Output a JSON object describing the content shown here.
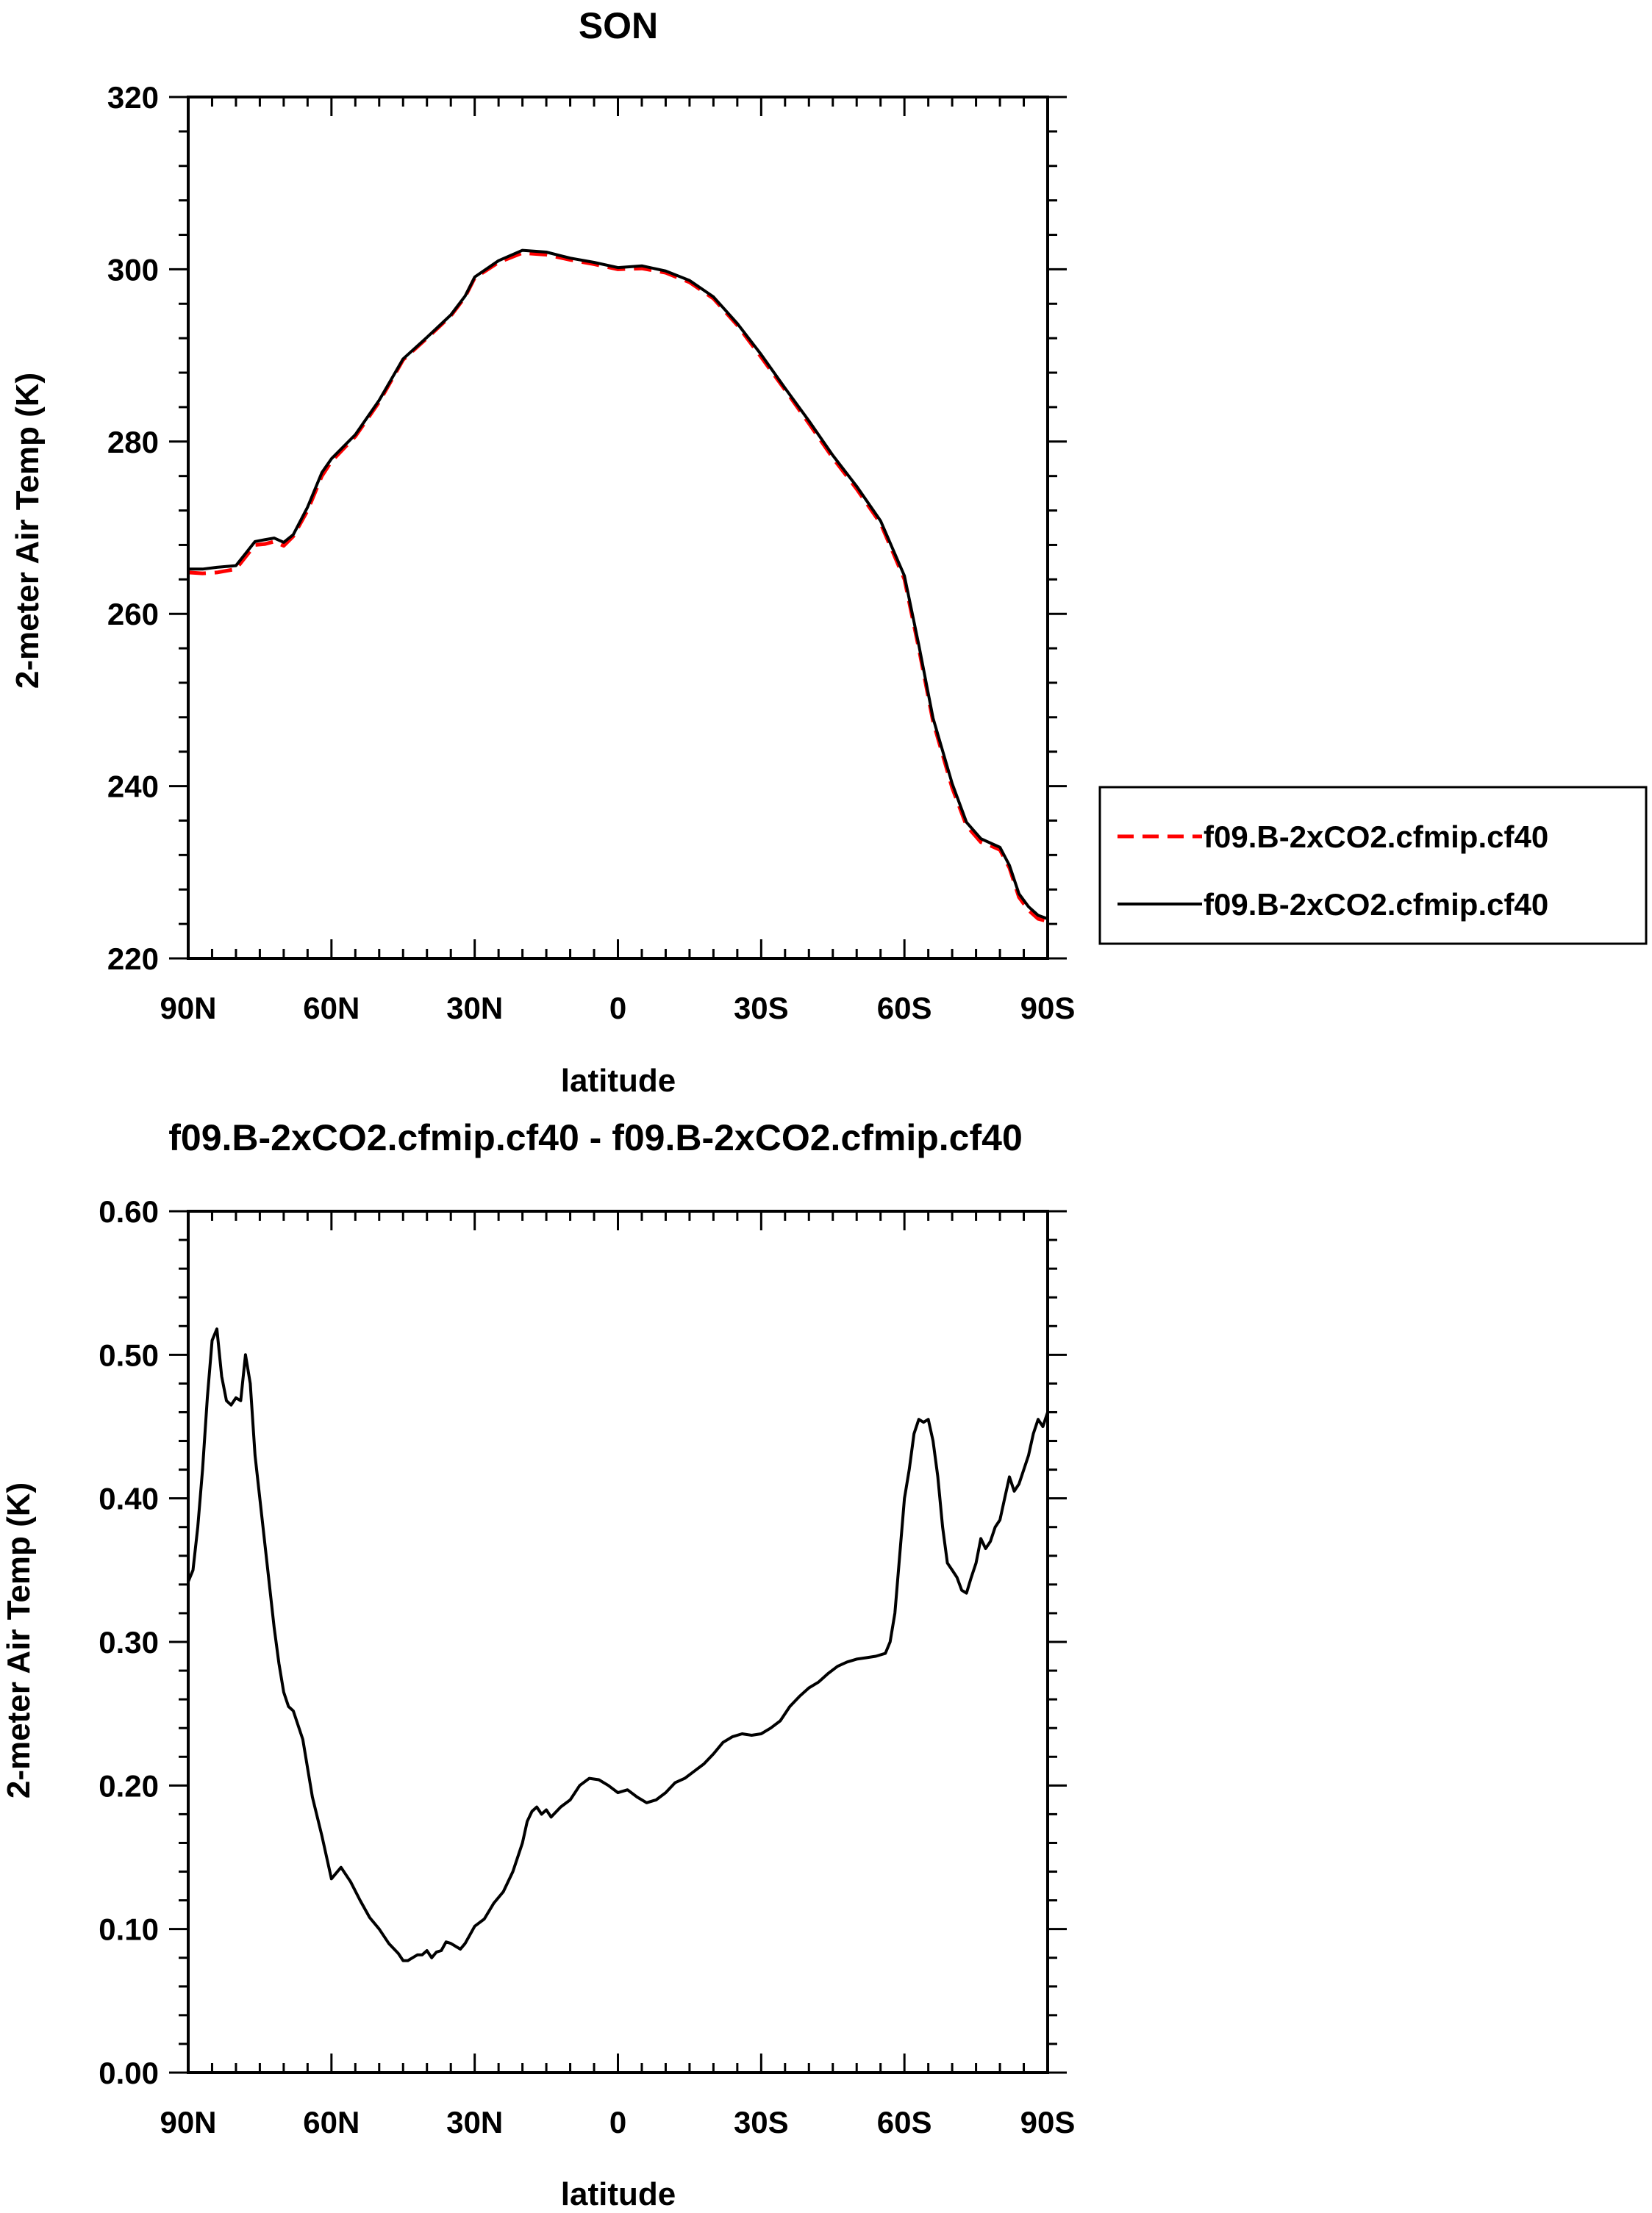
{
  "chart_data": [
    {
      "type": "line",
      "title": "SON",
      "xlabel": "latitude",
      "ylabel": "2-meter Air Temp (K)",
      "xlim": [
        90,
        -90
      ],
      "ylim": [
        220,
        320
      ],
      "x_ticks": [
        90,
        60,
        30,
        0,
        -30,
        -60,
        -90
      ],
      "x_tick_labels": [
        "90N",
        "60N",
        "30N",
        "0",
        "30S",
        "60S",
        "90S"
      ],
      "y_ticks": [
        220,
        240,
        260,
        280,
        300,
        320
      ],
      "y_tick_labels": [
        "220",
        "240",
        "260",
        "280",
        "300",
        "320"
      ],
      "grid": false,
      "legend": {
        "placement": "right-outside",
        "entries": [
          {
            "label": "f09.B-2xCO2.cfmip.cf40",
            "color": "#ff0000",
            "style": "dashed"
          },
          {
            "label": "f09.B-2xCO2.cfmip.cf40",
            "color": "#000000",
            "style": "solid"
          }
        ]
      },
      "series": [
        {
          "name": "f09.B-2xCO2.cfmip.cf40",
          "color": "#ff0000",
          "style": "dashed",
          "x": [
            90,
            87,
            84,
            80,
            78,
            76,
            74,
            72,
            70,
            68,
            65,
            62,
            60,
            55,
            50,
            45,
            40,
            35,
            32,
            30,
            25,
            20,
            15,
            10,
            5,
            0,
            -5,
            -10,
            -15,
            -20,
            -25,
            -30,
            -35,
            -40,
            -45,
            -50,
            -55,
            -60,
            -63,
            -66,
            -70,
            -73,
            -76,
            -78,
            -80,
            -82,
            -84,
            -86,
            -88,
            -90
          ],
          "y": [
            264.8,
            264.7,
            264.8,
            265.2,
            266.6,
            268.0,
            268.1,
            268.4,
            267.9,
            269.0,
            272.0,
            276.0,
            277.7,
            280.6,
            284.6,
            289.5,
            292.0,
            294.6,
            296.8,
            299.0,
            300.8,
            301.9,
            301.7,
            301.1,
            300.6,
            300.0,
            300.1,
            299.6,
            298.5,
            296.6,
            293.5,
            289.8,
            286.0,
            282.1,
            278.1,
            274.5,
            270.5,
            264.0,
            256.0,
            247.5,
            239.8,
            235.4,
            233.5,
            233.1,
            232.6,
            230.5,
            227.1,
            225.6,
            224.6,
            224.3
          ]
        },
        {
          "name": "f09.B-2xCO2.cfmip.cf40",
          "color": "#000000",
          "style": "solid",
          "x": [
            90,
            87,
            84,
            80,
            78,
            76,
            74,
            72,
            70,
            68,
            65,
            62,
            60,
            55,
            50,
            45,
            40,
            35,
            32,
            30,
            25,
            20,
            15,
            10,
            5,
            0,
            -5,
            -10,
            -15,
            -20,
            -25,
            -30,
            -35,
            -40,
            -45,
            -50,
            -55,
            -60,
            -63,
            -66,
            -70,
            -73,
            -76,
            -78,
            -80,
            -82,
            -84,
            -86,
            -88,
            -90
          ],
          "y": [
            265.2,
            265.2,
            265.4,
            265.6,
            267.0,
            268.4,
            268.6,
            268.8,
            268.3,
            269.2,
            272.4,
            276.4,
            278.0,
            280.8,
            284.8,
            289.6,
            292.1,
            294.7,
            296.9,
            299.1,
            301.0,
            302.2,
            302.0,
            301.3,
            300.8,
            300.2,
            300.4,
            299.8,
            298.7,
            296.8,
            293.7,
            290.1,
            286.2,
            282.4,
            278.4,
            274.8,
            270.8,
            264.4,
            256.4,
            247.9,
            240.3,
            235.8,
            233.9,
            233.4,
            232.9,
            230.8,
            227.5,
            226.0,
            225.0,
            224.6
          ]
        }
      ]
    },
    {
      "type": "line",
      "title": "f09.B-2xCO2.cfmip.cf40 - f09.B-2xCO2.cfmip.cf40",
      "xlabel": "latitude",
      "ylabel": "2-meter Air Temp (K)",
      "xlim": [
        90,
        -90
      ],
      "ylim": [
        0.0,
        0.6
      ],
      "x_ticks": [
        90,
        60,
        30,
        0,
        -30,
        -60,
        -90
      ],
      "x_tick_labels": [
        "90N",
        "60N",
        "30N",
        "0",
        "30S",
        "60S",
        "90S"
      ],
      "y_ticks": [
        0.0,
        0.1,
        0.2,
        0.3,
        0.4,
        0.5,
        0.6
      ],
      "y_tick_labels": [
        "0.00",
        "0.10",
        "0.20",
        "0.30",
        "0.40",
        "0.50",
        "0.60"
      ],
      "grid": false,
      "series": [
        {
          "color": "#000000",
          "style": "solid",
          "x": [
            90,
            89,
            88,
            87,
            86,
            85,
            84,
            83,
            82,
            81,
            80,
            79,
            78,
            77,
            76,
            75,
            74,
            73,
            72,
            71,
            70,
            69,
            68,
            66,
            64,
            62,
            60,
            58,
            56,
            54,
            52,
            50,
            48,
            46,
            45,
            44,
            43,
            42,
            41,
            40,
            39,
            38,
            37,
            36,
            35,
            34,
            33,
            32,
            30,
            28,
            26,
            24,
            22,
            20,
            19,
            18,
            17,
            16,
            15,
            14,
            12,
            10,
            8,
            6,
            4,
            2,
            0,
            -2,
            -4,
            -6,
            -8,
            -10,
            -12,
            -14,
            -16,
            -18,
            -20,
            -22,
            -24,
            -26,
            -28,
            -30,
            -32,
            -34,
            -36,
            -38,
            -40,
            -42,
            -44,
            -46,
            -48,
            -50,
            -52,
            -54,
            -56,
            -57,
            -58,
            -59,
            -60,
            -61,
            -62,
            -63,
            -64,
            -65,
            -66,
            -67,
            -68,
            -69,
            -70,
            -71,
            -72,
            -73,
            -74,
            -75,
            -76,
            -77,
            -78,
            -79,
            -80,
            -81,
            -82,
            -83,
            -84,
            -85,
            -86,
            -87,
            -88,
            -89,
            -90
          ],
          "y": [
            0.342,
            0.35,
            0.38,
            0.42,
            0.47,
            0.51,
            0.518,
            0.485,
            0.468,
            0.465,
            0.47,
            0.468,
            0.5,
            0.48,
            0.43,
            0.4,
            0.37,
            0.34,
            0.31,
            0.285,
            0.265,
            0.255,
            0.252,
            0.232,
            0.192,
            0.165,
            0.135,
            0.143,
            0.133,
            0.12,
            0.108,
            0.1,
            0.09,
            0.083,
            0.078,
            0.078,
            0.08,
            0.082,
            0.082,
            0.085,
            0.08,
            0.084,
            0.085,
            0.091,
            0.09,
            0.088,
            0.086,
            0.09,
            0.102,
            0.107,
            0.118,
            0.126,
            0.14,
            0.16,
            0.175,
            0.182,
            0.185,
            0.18,
            0.183,
            0.178,
            0.185,
            0.19,
            0.2,
            0.205,
            0.204,
            0.2,
            0.195,
            0.197,
            0.192,
            0.188,
            0.19,
            0.195,
            0.202,
            0.205,
            0.21,
            0.215,
            0.222,
            0.23,
            0.234,
            0.236,
            0.235,
            0.236,
            0.24,
            0.245,
            0.255,
            0.262,
            0.268,
            0.272,
            0.278,
            0.283,
            0.286,
            0.288,
            0.289,
            0.29,
            0.292,
            0.3,
            0.32,
            0.36,
            0.4,
            0.42,
            0.445,
            0.455,
            0.453,
            0.455,
            0.44,
            0.415,
            0.38,
            0.355,
            0.35,
            0.345,
            0.336,
            0.334,
            0.345,
            0.355,
            0.372,
            0.365,
            0.37,
            0.38,
            0.385,
            0.4,
            0.415,
            0.405,
            0.41,
            0.42,
            0.43,
            0.445,
            0.455,
            0.45,
            0.46
          ]
        }
      ]
    }
  ]
}
